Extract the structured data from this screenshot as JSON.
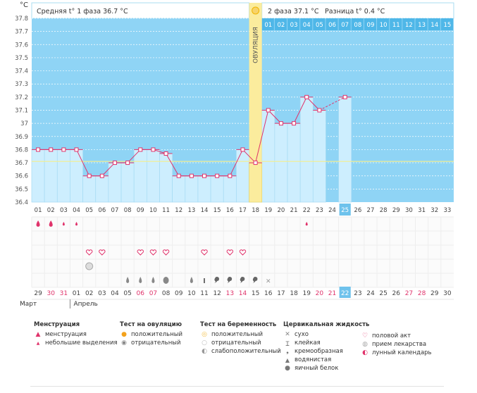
{
  "header": {
    "unit": "°C",
    "phase1": "Средняя t° 1 фаза 36.7 °C",
    "phase2": "2 фаза 37.1 °C",
    "diff": "Разница t° 0.4 °C",
    "ovulation_label": "ОВУЛЯЦИЯ",
    "phase2_days": [
      "01",
      "02",
      "03",
      "04",
      "05",
      "06",
      "07",
      "08",
      "09",
      "10",
      "11",
      "12",
      "13",
      "14",
      "15"
    ]
  },
  "chart_data": {
    "type": "line",
    "title": "",
    "xlabel": "",
    "ylabel": "°C",
    "ylim": [
      36.4,
      37.8
    ],
    "yticks": [
      "36.4",
      "36.5",
      "36.6",
      "36.7",
      "36.8",
      "36.9",
      "37",
      "37.1",
      "37.2",
      "37.3",
      "37.4",
      "37.5",
      "37.6",
      "37.7",
      "37.8"
    ],
    "cycle_days": [
      "01",
      "02",
      "03",
      "04",
      "05",
      "06",
      "07",
      "08",
      "09",
      "10",
      "11",
      "12",
      "13",
      "14",
      "15",
      "16",
      "17",
      "18",
      "19",
      "20",
      "21",
      "22",
      "23",
      "24",
      "25",
      "26",
      "27",
      "28",
      "29",
      "30",
      "31",
      "32",
      "33"
    ],
    "temperatures": [
      36.8,
      36.8,
      36.8,
      36.8,
      36.6,
      36.6,
      36.7,
      36.7,
      36.8,
      36.8,
      36.77,
      36.6,
      36.6,
      36.6,
      36.6,
      36.6,
      36.8,
      36.7,
      37.1,
      37.0,
      37.0,
      37.2,
      37.1,
      null,
      37.2
    ],
    "coverline": 36.71,
    "ovulation_day": 18,
    "today_day": 25
  },
  "symbols": {
    "menstruation": [
      "drop-big",
      "drop-big",
      "drop-small",
      "drop-small",
      null,
      null,
      null,
      null,
      null,
      null,
      null,
      null,
      null,
      null,
      null,
      null,
      null,
      null,
      null,
      null,
      null,
      "drop-small"
    ],
    "sex": [
      5,
      6,
      9,
      10,
      11,
      14,
      16,
      17
    ],
    "medicine": [
      5
    ],
    "fluid": [
      "",
      "",
      "",
      "",
      "",
      "",
      "",
      "",
      "",
      "",
      "",
      "",
      "",
      "",
      "",
      "",
      "",
      "",
      "",
      "",
      "",
      "",
      "",
      ""
    ],
    "fluid_days": {
      "8": "water",
      "9": "water",
      "10": "water",
      "11": "egg",
      "13": "water",
      "14": "sticky",
      "15": "creamy",
      "16": "creamy",
      "17": "creamy",
      "18": "creamy",
      "19": "dry"
    }
  },
  "calendar": {
    "dates": [
      "29",
      "30",
      "31",
      "01",
      "02",
      "03",
      "04",
      "05",
      "06",
      "07",
      "08",
      "09",
      "10",
      "11",
      "12",
      "13",
      "14",
      "15",
      "16",
      "17",
      "18",
      "19",
      "20",
      "21",
      "22",
      "23",
      "24",
      "25",
      "26",
      "27",
      "28",
      "29",
      "30"
    ],
    "red": [
      1,
      2,
      8,
      9,
      15,
      16,
      22,
      23,
      29,
      30
    ],
    "today_index": 24,
    "month1": "Март",
    "month2": "Апрель"
  },
  "legend": {
    "menstruation": {
      "title": "Менструация",
      "items": [
        "менструация",
        "небольшие выделения"
      ]
    },
    "ovulation_test": {
      "title": "Тест на овуляцию",
      "items": [
        "положительный",
        "отрицательный"
      ]
    },
    "pregnancy_test": {
      "title": "Тест на беременность",
      "items": [
        "положительный",
        "отрицательный",
        "слабоположительный"
      ]
    },
    "cervical": {
      "title": "Цервикальная жидкость",
      "items": [
        "сухо",
        "клейкая",
        "кремообразная",
        "водянистая",
        "яичный белок"
      ]
    },
    "other": {
      "items": [
        "половой акт",
        "прием лекарства",
        "лунный календарь"
      ]
    }
  }
}
